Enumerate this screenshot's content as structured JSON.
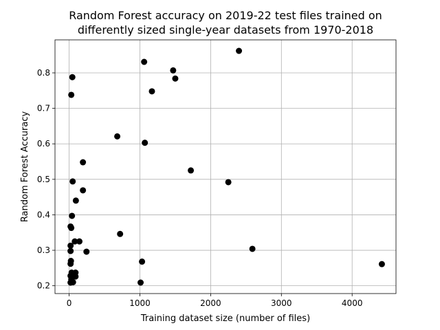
{
  "chart_data": {
    "type": "scatter",
    "title_lines": [
      "Random Forest accuracy on 2019-22 test files trained on",
      "differently sized single-year datasets from 1970-2018"
    ],
    "xlabel": "Training dataset size (number of files)",
    "ylabel": "Random Forest Accuracy",
    "xlim": [
      -200,
      4620
    ],
    "ylim": [
      0.178,
      0.893
    ],
    "xticks": [
      0,
      1000,
      2000,
      3000,
      4000
    ],
    "yticks": [
      0.2,
      0.3,
      0.4,
      0.5,
      0.6,
      0.7,
      0.8
    ],
    "ytick_labels": [
      "0.2",
      "0.3",
      "0.4",
      "0.5",
      "0.6",
      "0.7",
      "0.8"
    ],
    "grid": true,
    "marker_color": "#000000",
    "points": [
      {
        "x": 2400,
        "y": 0.862
      },
      {
        "x": 1060,
        "y": 0.831
      },
      {
        "x": 1470,
        "y": 0.807
      },
      {
        "x": 1500,
        "y": 0.784
      },
      {
        "x": 45,
        "y": 0.788
      },
      {
        "x": 1170,
        "y": 0.748
      },
      {
        "x": 30,
        "y": 0.738
      },
      {
        "x": 680,
        "y": 0.621
      },
      {
        "x": 1070,
        "y": 0.603
      },
      {
        "x": 195,
        "y": 0.548
      },
      {
        "x": 1720,
        "y": 0.525
      },
      {
        "x": 50,
        "y": 0.494
      },
      {
        "x": 2250,
        "y": 0.492
      },
      {
        "x": 195,
        "y": 0.469
      },
      {
        "x": 95,
        "y": 0.44
      },
      {
        "x": 40,
        "y": 0.397
      },
      {
        "x": 20,
        "y": 0.367
      },
      {
        "x": 30,
        "y": 0.363
      },
      {
        "x": 720,
        "y": 0.346
      },
      {
        "x": 80,
        "y": 0.325
      },
      {
        "x": 145,
        "y": 0.325
      },
      {
        "x": 20,
        "y": 0.313
      },
      {
        "x": 2590,
        "y": 0.304
      },
      {
        "x": 20,
        "y": 0.298
      },
      {
        "x": 245,
        "y": 0.296
      },
      {
        "x": 25,
        "y": 0.27
      },
      {
        "x": 20,
        "y": 0.262
      },
      {
        "x": 1030,
        "y": 0.268
      },
      {
        "x": 4420,
        "y": 0.261
      },
      {
        "x": 35,
        "y": 0.237
      },
      {
        "x": 90,
        "y": 0.237
      },
      {
        "x": 20,
        "y": 0.228
      },
      {
        "x": 50,
        "y": 0.228
      },
      {
        "x": 90,
        "y": 0.226
      },
      {
        "x": 30,
        "y": 0.218
      },
      {
        "x": 20,
        "y": 0.209
      },
      {
        "x": 55,
        "y": 0.21
      },
      {
        "x": 1010,
        "y": 0.209
      }
    ]
  }
}
